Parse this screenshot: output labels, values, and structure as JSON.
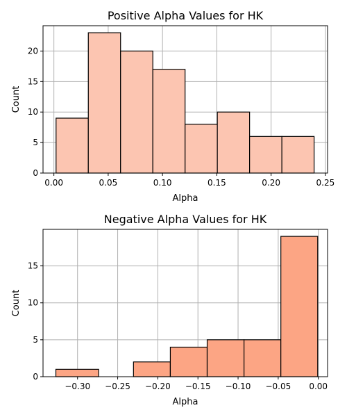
{
  "chart_data": [
    {
      "type": "bar",
      "title": "Positive Alpha Values for HK",
      "xlabel": "Alpha",
      "ylabel": "Count",
      "color": "#fcc5b1",
      "bin_edges": [
        0.002,
        0.0317,
        0.0614,
        0.0911,
        0.1208,
        0.1505,
        0.1802,
        0.2099,
        0.2396
      ],
      "values": [
        9,
        23,
        20,
        17,
        8,
        10,
        6,
        6
      ],
      "xlim": [
        -0.01,
        0.252
      ],
      "ylim": [
        0,
        24.15
      ],
      "xticks": [
        0.0,
        0.05,
        0.1,
        0.15,
        0.2,
        0.25
      ],
      "xtick_labels": [
        "0.00",
        "0.05",
        "0.10",
        "0.15",
        "0.20",
        "0.25"
      ],
      "yticks": [
        0,
        5,
        10,
        15,
        20
      ],
      "ytick_labels": [
        "0",
        "5",
        "10",
        "15",
        "20"
      ],
      "grid": true
    },
    {
      "type": "bar",
      "title": "Negative Alpha Values for HK",
      "xlabel": "Alpha",
      "ylabel": "Count",
      "color": "#fca584",
      "bin_edges": [
        -0.327,
        -0.2737,
        -0.2303,
        -0.1844,
        -0.1385,
        -0.0926,
        -0.0467,
        -0.0008
      ],
      "values": [
        1,
        0,
        2,
        4,
        5,
        5,
        19
      ],
      "xlim": [
        -0.343,
        0.0115
      ],
      "ylim": [
        0,
        19.95
      ],
      "xticks": [
        -0.3,
        -0.25,
        -0.2,
        -0.15,
        -0.1,
        -0.05,
        0.0
      ],
      "xtick_labels": [
        "−0.30",
        "−0.25",
        "−0.20",
        "−0.15",
        "−0.10",
        "−0.05",
        "0.00"
      ],
      "yticks": [
        0,
        5,
        10,
        15
      ],
      "ytick_labels": [
        "0",
        "5",
        "10",
        "15"
      ],
      "grid": true
    }
  ]
}
